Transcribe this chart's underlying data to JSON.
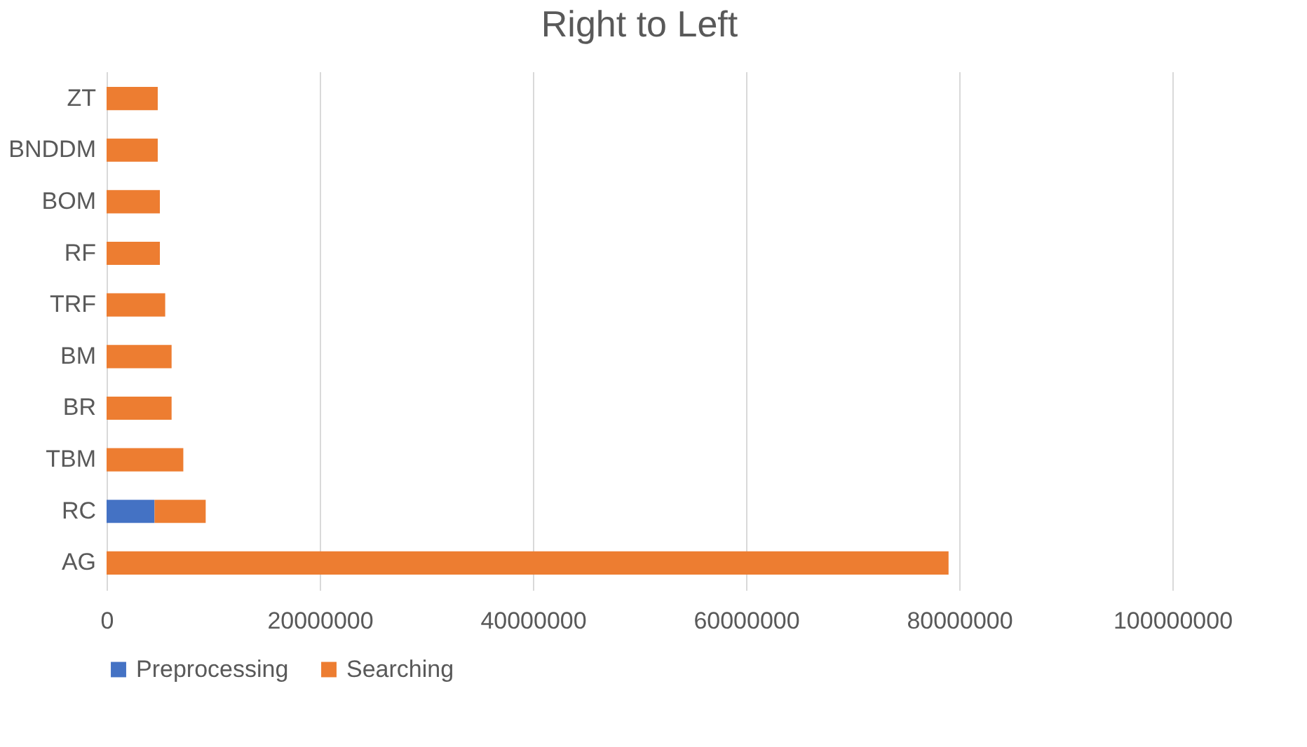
{
  "chart_data": {
    "type": "bar",
    "title": "Right to Left",
    "orientation": "horizontal",
    "stacked": true,
    "categories": [
      "ZT",
      "BNDDM",
      "BOM",
      "RF",
      "TRF",
      "BM",
      "BR",
      "TBM",
      "RC",
      "AG"
    ],
    "series": [
      {
        "name": "Preprocessing",
        "color": "#4472c4",
        "values": [
          0,
          0,
          0,
          0,
          0,
          0,
          0,
          0,
          4500000,
          0
        ]
      },
      {
        "name": "Searching",
        "color": "#ed7d31",
        "values": [
          4800000,
          4800000,
          5000000,
          5000000,
          5500000,
          6100000,
          6100000,
          7200000,
          4800000,
          79000000
        ]
      }
    ],
    "xlim": [
      0,
      100000000
    ],
    "xticks": [
      0,
      20000000,
      40000000,
      60000000,
      80000000,
      100000000
    ],
    "grid": "x",
    "legend": "bottom"
  }
}
